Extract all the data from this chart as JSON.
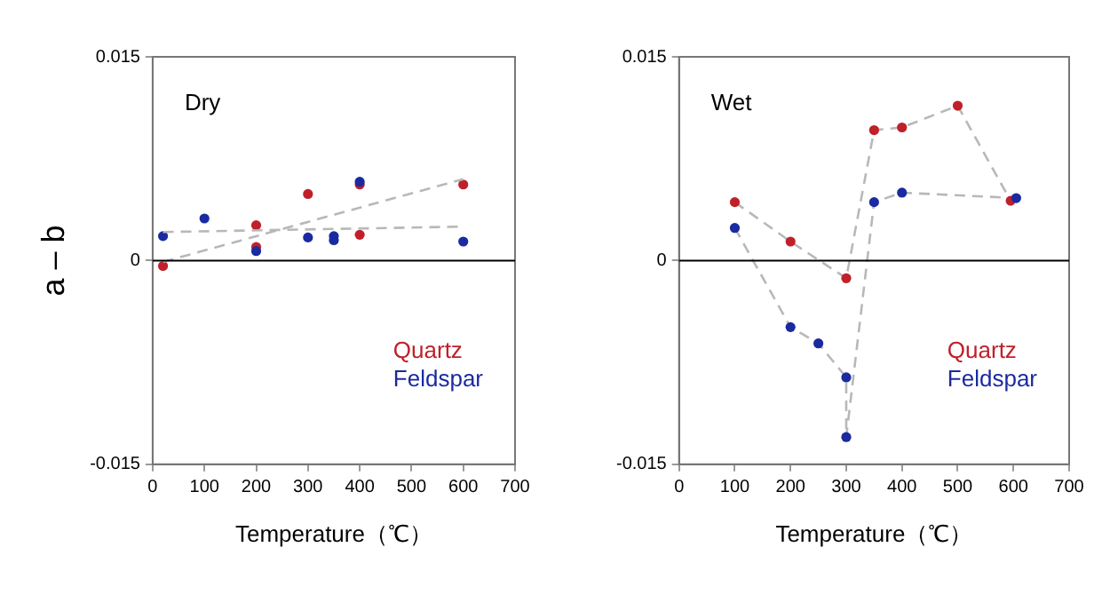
{
  "chart_data": [
    {
      "type": "scatter",
      "xlabel": "Temperature（℃）",
      "ylabel": "a – b",
      "annotations": [
        "Dry"
      ],
      "xlim": [
        0,
        700
      ],
      "xticks": [
        0,
        100,
        200,
        300,
        400,
        500,
        600,
        700
      ],
      "ylim": [
        -0.015,
        0.015
      ],
      "yticks": [
        -0.015,
        0,
        0.015
      ],
      "ref_lines": [
        {
          "axis": "y",
          "value": 0,
          "color": "#000000"
        }
      ],
      "grid": false,
      "legend": "bottom right",
      "marker": "circle",
      "series": [
        {
          "name": "Quartz",
          "color": "#c0202a",
          "x": [
            20,
            200,
            200,
            300,
            400,
            400,
            600
          ],
          "values": [
            -0.0004,
            0.0026,
            0.001,
            0.0049,
            0.0019,
            0.0056,
            0.0056
          ]
        },
        {
          "name": "Feldspar",
          "color": "#1a2aa0",
          "x": [
            20,
            100,
            200,
            300,
            350,
            350,
            400,
            600
          ],
          "values": [
            0.0018,
            0.0031,
            0.0007,
            0.0017,
            0.0018,
            0.0015,
            0.0058,
            0.0014
          ]
        },
        {
          "type": "line",
          "color": "#b8b8b8",
          "marker": "none",
          "line_style": "dashed",
          "x": [
            20,
            600
          ],
          "values": [
            -0.0001,
            0.006
          ]
        },
        {
          "type": "line",
          "color": "#b8b8b8",
          "marker": "none",
          "line_style": "dashed",
          "x": [
            20,
            600
          ],
          "values": [
            0.0021,
            0.0025
          ]
        }
      ]
    },
    {
      "type": "scatter",
      "xlabel": "Temperature（℃）",
      "annotations": [
        "Wet"
      ],
      "xlim": [
        0,
        700
      ],
      "xticks": [
        0,
        100,
        200,
        300,
        400,
        500,
        600,
        700
      ],
      "ylim": [
        -0.015,
        0.015
      ],
      "yticks": [
        -0.015,
        0,
        0.015
      ],
      "ref_lines": [
        {
          "axis": "y",
          "value": 0,
          "color": "#000000"
        }
      ],
      "grid": false,
      "legend": "bottom right",
      "marker": "circle",
      "series": [
        {
          "type": "line",
          "color": "#b8b8b8",
          "marker": "none",
          "line_style": "dashed",
          "x": [
            100,
            200,
            300,
            350,
            400,
            500,
            595
          ],
          "values": [
            0.0043,
            0.0014,
            -0.0013,
            0.0096,
            0.0098,
            0.0114,
            0.0044
          ]
        },
        {
          "type": "line",
          "color": "#b8b8b8",
          "marker": "none",
          "line_style": "dashed",
          "x": [
            100,
            200,
            250,
            300,
            300,
            350,
            400,
            605
          ],
          "values": [
            0.0024,
            -0.0049,
            -0.0061,
            -0.0086,
            -0.013,
            0.0043,
            0.005,
            0.0046
          ]
        },
        {
          "name": "Quartz",
          "color": "#c0202a",
          "x": [
            100,
            200,
            300,
            350,
            400,
            500,
            595
          ],
          "values": [
            0.0043,
            0.0014,
            -0.0013,
            0.0096,
            0.0098,
            0.0114,
            0.0044
          ]
        },
        {
          "name": "Feldspar",
          "color": "#1a2aa0",
          "x": [
            100,
            200,
            250,
            300,
            300,
            350,
            400,
            605
          ],
          "values": [
            0.0024,
            -0.0049,
            -0.0061,
            -0.0086,
            -0.013,
            0.0043,
            0.005,
            0.0046
          ]
        }
      ]
    }
  ]
}
